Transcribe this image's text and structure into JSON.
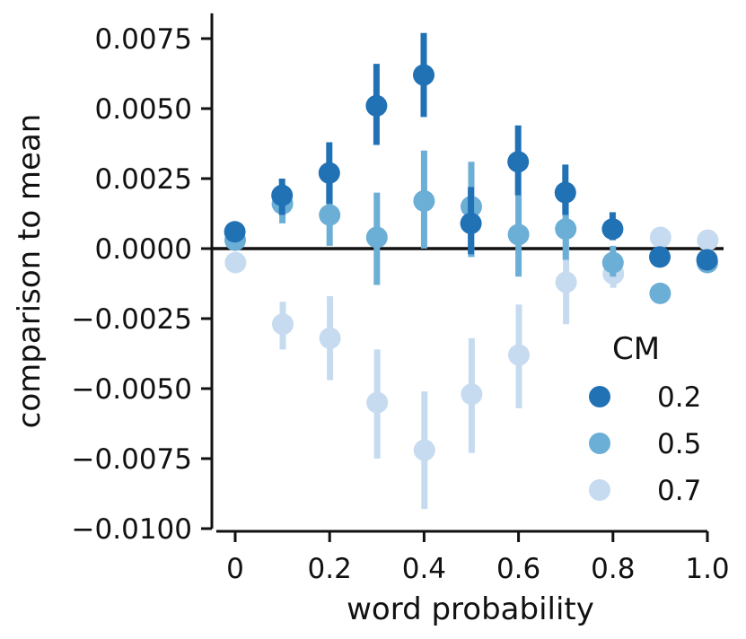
{
  "chart_data": {
    "type": "scatter",
    "style": "point-plot with error bars",
    "title": "",
    "xlabel": "word probability",
    "ylabel": "comparison to mean",
    "xlim": [
      -0.04,
      1.0
    ],
    "ylim": [
      -0.01,
      0.0084
    ],
    "x": [
      0,
      0.1,
      0.2,
      0.3,
      0.4,
      0.5,
      0.6,
      0.7,
      0.8,
      0.9,
      1.0
    ],
    "x_ticks": [
      "0",
      "0.2",
      "0.4",
      "0.6",
      "0.8",
      "1.0"
    ],
    "x_tick_values": [
      0,
      0.2,
      0.4,
      0.6,
      0.8,
      1.0
    ],
    "y_ticks": [
      "0.0075",
      "0.0050",
      "0.0025",
      "0.0000",
      "−0.0025",
      "−0.0050",
      "−0.0075",
      "−0.0100"
    ],
    "y_tick_values": [
      0.0075,
      0.005,
      0.0025,
      0.0,
      -0.0025,
      -0.005,
      -0.0075,
      -0.01
    ],
    "reference_line_y": 0,
    "legend": {
      "title": "CM",
      "placement": "right"
    },
    "series": [
      {
        "name": "0.2",
        "color": "#2171b5",
        "values": [
          0.0006,
          0.0019,
          0.0027,
          0.0051,
          0.0062,
          0.0009,
          0.0031,
          0.002,
          0.0007,
          -0.0003,
          -0.0004
        ],
        "err_low": [
          0.0006,
          0.0012,
          0.0016,
          0.0037,
          0.0047,
          -0.0002,
          0.0019,
          0.0012,
          0.0003,
          -0.0003,
          -0.0004
        ],
        "err_high": [
          0.0006,
          0.0025,
          0.0038,
          0.0066,
          0.0077,
          0.0022,
          0.0044,
          0.003,
          0.0013,
          -0.0003,
          -0.0004
        ]
      },
      {
        "name": "0.5",
        "color": "#6baed6",
        "values": [
          0.0003,
          0.0016,
          0.0012,
          0.0004,
          0.0017,
          0.0015,
          0.0005,
          0.0007,
          -0.0005,
          -0.0016,
          -0.0005
        ],
        "err_low": [
          0.0003,
          0.0009,
          0.0001,
          -0.0013,
          0.0,
          -0.0003,
          -0.001,
          -0.0004,
          -0.001,
          -0.0016,
          -0.0005
        ],
        "err_high": [
          0.0003,
          0.0023,
          0.0024,
          0.002,
          0.0035,
          0.0031,
          0.0019,
          0.0019,
          0.0001,
          -0.0016,
          -0.0005
        ]
      },
      {
        "name": "0.7",
        "color": "#c6dbef",
        "values": [
          -0.0005,
          -0.0027,
          -0.0032,
          -0.0055,
          -0.0072,
          -0.0052,
          -0.0038,
          -0.0012,
          -0.0009,
          0.0004,
          0.0003
        ],
        "err_low": [
          -0.0005,
          -0.0036,
          -0.0047,
          -0.0075,
          -0.0093,
          -0.0073,
          -0.0057,
          -0.0027,
          -0.0014,
          0.0004,
          0.0003
        ],
        "err_high": [
          -0.0005,
          -0.0019,
          -0.0017,
          -0.0036,
          -0.0051,
          -0.0032,
          -0.002,
          0.0003,
          -0.0004,
          0.0004,
          0.0003
        ]
      }
    ]
  }
}
